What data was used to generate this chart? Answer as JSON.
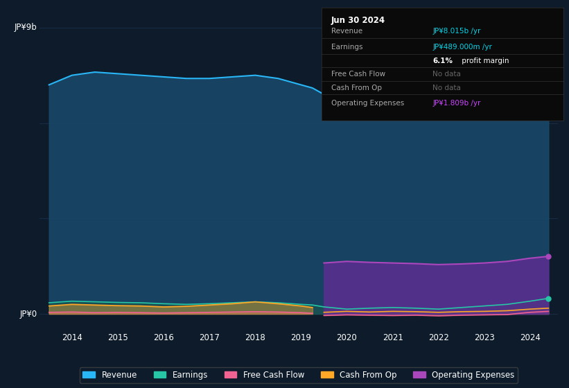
{
  "background_color": "#0d1b2a",
  "plot_bg_color": "#0d1b2a",
  "years": [
    2013.5,
    2014,
    2014.5,
    2015,
    2015.5,
    2016,
    2016.5,
    2017,
    2017.5,
    2018,
    2018.5,
    2019,
    2019.25,
    2019.5,
    2020,
    2020.5,
    2021,
    2021.5,
    2022,
    2022.5,
    2023,
    2023.5,
    2024,
    2024.4
  ],
  "revenue": [
    7.2,
    7.5,
    7.6,
    7.55,
    7.5,
    7.45,
    7.4,
    7.4,
    7.45,
    7.5,
    7.4,
    7.2,
    7.1,
    6.9,
    6.3,
    6.4,
    6.45,
    6.4,
    6.35,
    6.5,
    6.7,
    7.2,
    7.8,
    8.015
  ],
  "earnings": [
    0.35,
    0.4,
    0.38,
    0.36,
    0.35,
    0.32,
    0.3,
    0.32,
    0.35,
    0.38,
    0.35,
    0.3,
    0.28,
    0.22,
    0.15,
    0.18,
    0.2,
    0.18,
    0.15,
    0.2,
    0.25,
    0.3,
    0.4,
    0.489
  ],
  "free_cash_flow_x": [
    2013.5,
    2014,
    2014.5,
    2015,
    2015.5,
    2016,
    2016.5,
    2017,
    2017.5,
    2018,
    2018.5,
    2019,
    2019.25
  ],
  "free_cash_flow": [
    0.05,
    0.06,
    0.04,
    0.05,
    0.04,
    0.03,
    0.04,
    0.05,
    0.06,
    0.07,
    0.06,
    0.04,
    0.02
  ],
  "free_cash_flow_x2": [
    2019.5,
    2020,
    2020.5,
    2021,
    2021.5,
    2022,
    2022.5,
    2023,
    2023.5,
    2024,
    2024.4
  ],
  "free_cash_flow2": [
    -0.05,
    -0.03,
    -0.04,
    -0.05,
    -0.04,
    -0.06,
    -0.04,
    -0.03,
    -0.02,
    0.05,
    0.08
  ],
  "cash_from_op_x": [
    2013.5,
    2014,
    2014.5,
    2015,
    2015.5,
    2016,
    2016.5,
    2017,
    2017.5,
    2018,
    2018.5,
    2019,
    2019.25
  ],
  "cash_from_op": [
    0.25,
    0.3,
    0.28,
    0.26,
    0.25,
    0.22,
    0.24,
    0.28,
    0.32,
    0.38,
    0.32,
    0.25,
    0.2
  ],
  "cash_from_op_x2": [
    2019.5,
    2020,
    2020.5,
    2021,
    2021.5,
    2022,
    2022.5,
    2023,
    2023.5,
    2024,
    2024.4
  ],
  "cash_from_op2": [
    0.05,
    0.08,
    0.06,
    0.08,
    0.07,
    0.05,
    0.07,
    0.08,
    0.1,
    0.15,
    0.18
  ],
  "op_expenses_x": [
    2019.5,
    2020,
    2020.5,
    2021,
    2021.5,
    2022,
    2022.5,
    2023,
    2023.5,
    2024,
    2024.4
  ],
  "op_expenses": [
    1.6,
    1.65,
    1.62,
    1.6,
    1.58,
    1.55,
    1.57,
    1.6,
    1.65,
    1.75,
    1.809
  ],
  "ylim": [
    -0.5,
    9.5
  ],
  "xlim": [
    2013.3,
    2024.6
  ],
  "xticks": [
    2014,
    2015,
    2016,
    2017,
    2018,
    2019,
    2020,
    2021,
    2022,
    2023,
    2024
  ],
  "colors": {
    "revenue": "#29b6f6",
    "earnings": "#26c6a6",
    "free_cash_flow": "#f06292",
    "cash_from_op": "#ffa726",
    "op_expenses": "#ab47bc",
    "revenue_fill": "#1a4a6b",
    "earnings_fill": "#1a5a4a",
    "op_expenses_fill": "#5c2d91",
    "grid_color": "#1e3a5a"
  },
  "legend": [
    {
      "label": "Revenue",
      "color": "#29b6f6"
    },
    {
      "label": "Earnings",
      "color": "#26c6a6"
    },
    {
      "label": "Free Cash Flow",
      "color": "#f06292"
    },
    {
      "label": "Cash From Op",
      "color": "#ffa726"
    },
    {
      "label": "Operating Expenses",
      "color": "#ab47bc"
    }
  ],
  "info_box": {
    "date": "Jun 30 2024",
    "rows": [
      {
        "label": "Revenue",
        "value": "JP¥8.015b /yr",
        "value_color": "#00d4e8"
      },
      {
        "label": "Earnings",
        "value": "JP¥489.000m /yr",
        "value_color": "#00d4e8"
      },
      {
        "label": "",
        "value": "6.1% profit margin",
        "value_color": "#ffffff",
        "bold_prefix": "6.1%"
      },
      {
        "label": "Free Cash Flow",
        "value": "No data",
        "value_color": "#666666"
      },
      {
        "label": "Cash From Op",
        "value": "No data",
        "value_color": "#666666"
      },
      {
        "label": "Operating Expenses",
        "value": "JP¥1.809b /yr",
        "value_color": "#cc44ff"
      }
    ]
  }
}
